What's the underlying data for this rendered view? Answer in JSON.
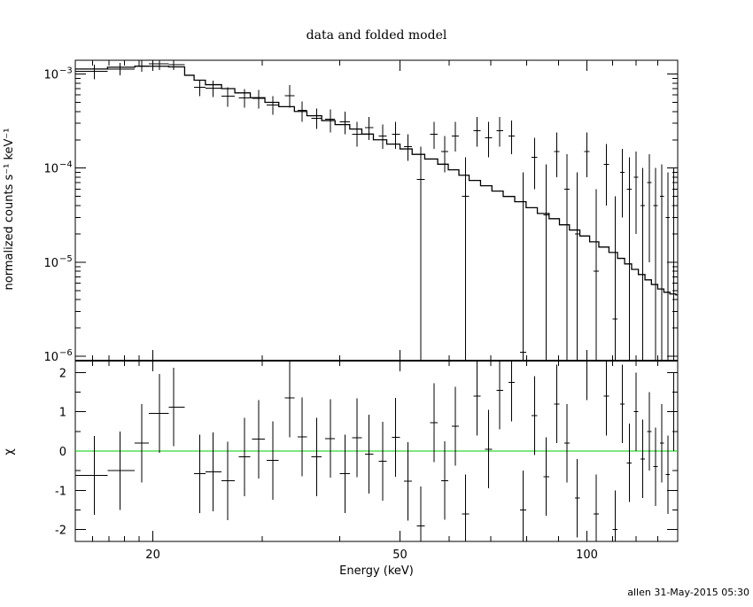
{
  "footer": "allen 31-May-2015 05:30",
  "chart_data": [
    {
      "type": "line",
      "title": "data and folded model",
      "xlabel": "",
      "ylabel": "normalized counts s⁻¹ keV⁻¹",
      "xscale": "log",
      "yscale": "log",
      "xlim": [
        15,
        140
      ],
      "ylim": [
        9e-07,
        0.0014
      ],
      "y_ticks": [
        {
          "v": 0.001,
          "base": "10",
          "exp": "−3"
        },
        {
          "v": 0.0001,
          "base": "10",
          "exp": "−4"
        },
        {
          "v": 1e-05,
          "base": "10",
          "exp": "−5"
        },
        {
          "v": 1e-06,
          "base": "10",
          "exp": "−6"
        }
      ],
      "grid": false,
      "series": [
        {
          "kind": "errorbars",
          "color": "#000000",
          "points": [
            {
              "x": 16.1,
              "xlo": 15.0,
              "xhi": 16.9,
              "y": 0.00107,
              "ylo": 0.00088,
              "yhi": 0.00126
            },
            {
              "x": 17.7,
              "xlo": 16.9,
              "xhi": 18.7,
              "y": 0.00113,
              "ylo": 0.00097,
              "yhi": 0.00131
            },
            {
              "x": 19.2,
              "xlo": 18.7,
              "xhi": 19.7,
              "y": 0.00122,
              "ylo": 0.00106,
              "yhi": 0.0014
            },
            {
              "x": 20.5,
              "xlo": 19.7,
              "xhi": 21.2,
              "y": 0.00128,
              "ylo": 0.0011,
              "yhi": 0.0014
            },
            {
              "x": 21.6,
              "xlo": 21.2,
              "xhi": 22.5,
              "y": 0.00125,
              "ylo": 0.0011,
              "yhi": 0.0014
            },
            {
              "x": 23.8,
              "xlo": 23.3,
              "xhi": 24.3,
              "y": 0.00072,
              "ylo": 0.00058,
              "yhi": 0.00087
            },
            {
              "x": 25.0,
              "xlo": 24.3,
              "xhi": 25.8,
              "y": 0.00071,
              "ylo": 0.00057,
              "yhi": 0.00085
            },
            {
              "x": 26.4,
              "xlo": 25.8,
              "xhi": 27.1,
              "y": 0.00058,
              "ylo": 0.00045,
              "yhi": 0.00072
            },
            {
              "x": 28.1,
              "xlo": 27.5,
              "xhi": 28.7,
              "y": 0.00056,
              "ylo": 0.00044,
              "yhi": 0.00069
            },
            {
              "x": 29.6,
              "xlo": 28.9,
              "xhi": 30.3,
              "y": 0.00055,
              "ylo": 0.00043,
              "yhi": 0.00068
            },
            {
              "x": 31.2,
              "xlo": 30.5,
              "xhi": 31.9,
              "y": 0.00047,
              "ylo": 0.00037,
              "yhi": 0.00058
            },
            {
              "x": 33.2,
              "xlo": 32.6,
              "xhi": 33.8,
              "y": 0.00059,
              "ylo": 0.00044,
              "yhi": 0.00076
            },
            {
              "x": 34.8,
              "xlo": 34.2,
              "xhi": 35.4,
              "y": 0.00041,
              "ylo": 0.00031,
              "yhi": 0.00051
            },
            {
              "x": 36.7,
              "xlo": 36.0,
              "xhi": 37.4,
              "y": 0.00034,
              "ylo": 0.00026,
              "yhi": 0.00043
            },
            {
              "x": 38.6,
              "xlo": 37.9,
              "xhi": 39.3,
              "y": 0.00033,
              "ylo": 0.00024,
              "yhi": 0.00042
            },
            {
              "x": 40.8,
              "xlo": 40.0,
              "xhi": 41.5,
              "y": 0.00031,
              "ylo": 0.00023,
              "yhi": 0.0004
            },
            {
              "x": 42.6,
              "xlo": 41.9,
              "xhi": 43.4,
              "y": 0.00023,
              "ylo": 0.00017,
              "yhi": 0.00031
            },
            {
              "x": 44.6,
              "xlo": 43.9,
              "xhi": 45.3,
              "y": 0.00027,
              "ylo": 0.0002,
              "yhi": 0.00035
            },
            {
              "x": 46.9,
              "xlo": 46.2,
              "xhi": 47.6,
              "y": 0.00022,
              "ylo": 0.00016,
              "yhi": 0.00029
            },
            {
              "x": 49.2,
              "xlo": 48.5,
              "xhi": 50.0,
              "y": 0.00023,
              "ylo": 0.00016,
              "yhi": 0.00031
            },
            {
              "x": 51.5,
              "xlo": 50.7,
              "xhi": 52.3,
              "y": 0.00017,
              "ylo": 0.00012,
              "yhi": 0.00023
            },
            {
              "x": 54.0,
              "xlo": 53.2,
              "xhi": 54.8,
              "y": 7.6e-05,
              "ylo": 9e-07,
              "yhi": 0.00017
            },
            {
              "x": 56.7,
              "xlo": 55.9,
              "xhi": 57.5,
              "y": 0.00023,
              "ylo": 0.00016,
              "yhi": 0.00031
            },
            {
              "x": 59.0,
              "xlo": 58.2,
              "xhi": 59.8,
              "y": 0.00015,
              "ylo": 9e-05,
              "yhi": 0.00022
            },
            {
              "x": 61.4,
              "xlo": 60.6,
              "xhi": 62.2,
              "y": 0.00022,
              "ylo": 0.00015,
              "yhi": 0.00031
            },
            {
              "x": 63.7,
              "xlo": 62.9,
              "xhi": 64.6,
              "y": 5e-05,
              "ylo": 9e-07,
              "yhi": 0.00013
            },
            {
              "x": 66.5,
              "xlo": 65.7,
              "xhi": 67.4,
              "y": 0.00025,
              "ylo": 0.00017,
              "yhi": 0.00035
            },
            {
              "x": 69.4,
              "xlo": 68.5,
              "xhi": 70.3,
              "y": 0.00021,
              "ylo": 0.00013,
              "yhi": 0.00031
            },
            {
              "x": 72.4,
              "xlo": 71.5,
              "xhi": 73.3,
              "y": 0.00025,
              "ylo": 0.00017,
              "yhi": 0.00035
            },
            {
              "x": 75.6,
              "xlo": 74.7,
              "xhi": 76.5,
              "y": 0.00022,
              "ylo": 0.00014,
              "yhi": 0.00032
            },
            {
              "x": 78.9,
              "xlo": 78.0,
              "xhi": 79.8,
              "y": 1.1e-06,
              "ylo": 9e-07,
              "yhi": 9e-05
            },
            {
              "x": 82.3,
              "xlo": 81.4,
              "xhi": 83.2,
              "y": 0.00013,
              "ylo": 6e-05,
              "yhi": 0.00021
            },
            {
              "x": 86.0,
              "xlo": 85.1,
              "xhi": 86.9,
              "y": 3.2e-05,
              "ylo": 9e-07,
              "yhi": 0.00011
            },
            {
              "x": 89.4,
              "xlo": 88.5,
              "xhi": 90.3,
              "y": 0.00015,
              "ylo": 8e-05,
              "yhi": 0.00024
            },
            {
              "x": 92.8,
              "xlo": 91.9,
              "xhi": 93.7,
              "y": 6e-05,
              "ylo": 9e-07,
              "yhi": 0.00014
            },
            {
              "x": 96.5,
              "xlo": 95.6,
              "xhi": 97.4,
              "y": 2e-05,
              "ylo": 9e-07,
              "yhi": 9e-05
            },
            {
              "x": 100.0,
              "xlo": 99.0,
              "xhi": 101.0,
              "y": 0.00015,
              "ylo": 8e-05,
              "yhi": 0.00024
            },
            {
              "x": 103.5,
              "xlo": 102.5,
              "xhi": 104.5,
              "y": 8e-06,
              "ylo": 9e-07,
              "yhi": 6e-05
            },
            {
              "x": 107.5,
              "xlo": 106.5,
              "xhi": 108.5,
              "y": 0.00011,
              "ylo": 4e-05,
              "yhi": 0.00018
            },
            {
              "x": 111.0,
              "xlo": 110.0,
              "xhi": 112.0,
              "y": 2.5e-06,
              "ylo": 9e-07,
              "yhi": 5e-05
            },
            {
              "x": 114.0,
              "xlo": 113.0,
              "xhi": 115.0,
              "y": 9e-05,
              "ylo": 3e-05,
              "yhi": 0.00016
            },
            {
              "x": 117.0,
              "xlo": 116.0,
              "xhi": 118.0,
              "y": 6e-05,
              "ylo": 9e-07,
              "yhi": 0.00013
            },
            {
              "x": 120.0,
              "xlo": 119.0,
              "xhi": 121.0,
              "y": 8e-05,
              "ylo": 2e-05,
              "yhi": 0.00015
            },
            {
              "x": 123.0,
              "xlo": 122.0,
              "xhi": 124.0,
              "y": 4e-05,
              "ylo": 9e-07,
              "yhi": 0.0001
            },
            {
              "x": 126.0,
              "xlo": 125.0,
              "xhi": 127.0,
              "y": 7e-05,
              "ylo": 1e-05,
              "yhi": 0.00014
            },
            {
              "x": 129.0,
              "xlo": 128.0,
              "xhi": 130.0,
              "y": 4e-05,
              "ylo": 9e-07,
              "yhi": 0.0001
            },
            {
              "x": 132.0,
              "xlo": 131.0,
              "xhi": 133.0,
              "y": 5e-05,
              "ylo": 9e-07,
              "yhi": 0.00011
            },
            {
              "x": 135.0,
              "xlo": 134.0,
              "xhi": 136.0,
              "y": 3e-05,
              "ylo": 9e-07,
              "yhi": 9e-05
            },
            {
              "x": 138.0,
              "xlo": 137.0,
              "xhi": 139.0,
              "y": 4e-05,
              "ylo": 9e-07,
              "yhi": 0.0001
            }
          ]
        },
        {
          "kind": "step",
          "color": "#000000",
          "edges": [
            15,
            16.9,
            18.7,
            19.7,
            21.2,
            22.5,
            23.3,
            24.3,
            25.8,
            27.1,
            28.7,
            30.3,
            31.9,
            33.8,
            35.4,
            37.4,
            39.3,
            41.5,
            43.4,
            45.3,
            47.6,
            50.0,
            52.3,
            54.8,
            57.5,
            59.8,
            62.2,
            64.6,
            67.4,
            70.3,
            73.3,
            76.5,
            79.8,
            83.2,
            86.9,
            90.3,
            93.7,
            97.4,
            101.0,
            104.5,
            108.5,
            112.0,
            115.0,
            118.0,
            121.0,
            124.0,
            127.0,
            130.0,
            133.0,
            136.0,
            139.0,
            140.0
          ],
          "values": [
            0.00113,
            0.00118,
            0.00121,
            0.00121,
            0.00119,
            0.00097,
            0.00086,
            0.00077,
            0.0007,
            0.00063,
            0.00056,
            0.0005,
            0.00045,
            0.0004,
            0.00036,
            0.00032,
            0.00029,
            0.00026,
            0.00023,
            0.0002,
            0.00018,
            0.00016,
            0.00014,
            0.000125,
            0.00011,
            9.6e-05,
            8.4e-05,
            7.4e-05,
            6.5e-05,
            5.7e-05,
            5e-05,
            4.4e-05,
            3.8e-05,
            3.3e-05,
            2.9e-05,
            2.5e-05,
            2.2e-05,
            1.9e-05,
            1.65e-05,
            1.45e-05,
            1.27e-05,
            1.1e-05,
            9.6e-06,
            8.4e-06,
            7.4e-06,
            6.5e-06,
            5.8e-06,
            5.2e-06,
            4.8e-06,
            4.6e-06,
            4.5e-06
          ]
        }
      ]
    },
    {
      "type": "scatter",
      "title": "",
      "xlabel": "Energy (keV)",
      "ylabel": "χ",
      "xscale": "log",
      "xlim": [
        15,
        140
      ],
      "ylim": [
        -2.3,
        2.3
      ],
      "y_ticks": [
        -2,
        -1,
        0,
        1,
        2
      ],
      "x_ticks": [
        20,
        50,
        100
      ],
      "grid": false,
      "zero_line_color": "#00cc00",
      "points": [
        {
          "x": 16.1,
          "xlo": 15.0,
          "xhi": 16.9,
          "y": -0.62
        },
        {
          "x": 17.7,
          "xlo": 16.9,
          "xhi": 18.7,
          "y": -0.5
        },
        {
          "x": 19.2,
          "xlo": 18.7,
          "xhi": 19.7,
          "y": 0.2
        },
        {
          "x": 20.5,
          "xlo": 19.7,
          "xhi": 21.2,
          "y": 0.96
        },
        {
          "x": 21.6,
          "xlo": 21.2,
          "xhi": 22.5,
          "y": 1.12
        },
        {
          "x": 23.8,
          "xlo": 23.3,
          "xhi": 24.3,
          "y": -0.58
        },
        {
          "x": 25.0,
          "xlo": 24.3,
          "xhi": 25.8,
          "y": -0.53
        },
        {
          "x": 26.4,
          "xlo": 25.8,
          "xhi": 27.1,
          "y": -0.76
        },
        {
          "x": 28.1,
          "xlo": 27.5,
          "xhi": 28.7,
          "y": -0.15
        },
        {
          "x": 29.6,
          "xlo": 28.9,
          "xhi": 30.3,
          "y": 0.3
        },
        {
          "x": 31.2,
          "xlo": 30.5,
          "xhi": 31.9,
          "y": -0.24
        },
        {
          "x": 33.2,
          "xlo": 32.6,
          "xhi": 33.8,
          "y": 1.35
        },
        {
          "x": 34.8,
          "xlo": 34.2,
          "xhi": 35.4,
          "y": 0.36
        },
        {
          "x": 36.7,
          "xlo": 36.0,
          "xhi": 37.4,
          "y": -0.15
        },
        {
          "x": 38.6,
          "xlo": 37.9,
          "xhi": 39.3,
          "y": 0.32
        },
        {
          "x": 40.8,
          "xlo": 40.0,
          "xhi": 41.5,
          "y": -0.58
        },
        {
          "x": 42.6,
          "xlo": 41.9,
          "xhi": 43.4,
          "y": 0.34
        },
        {
          "x": 44.6,
          "xlo": 43.9,
          "xhi": 45.3,
          "y": -0.08
        },
        {
          "x": 46.9,
          "xlo": 46.2,
          "xhi": 47.6,
          "y": -0.26
        },
        {
          "x": 49.2,
          "xlo": 48.5,
          "xhi": 50.0,
          "y": 0.35
        },
        {
          "x": 51.5,
          "xlo": 50.7,
          "xhi": 52.3,
          "y": -0.77
        },
        {
          "x": 54.0,
          "xlo": 53.2,
          "xhi": 54.8,
          "y": -1.9
        },
        {
          "x": 56.7,
          "xlo": 55.9,
          "xhi": 57.5,
          "y": 0.72
        },
        {
          "x": 59.0,
          "xlo": 58.2,
          "xhi": 59.8,
          "y": -0.75
        },
        {
          "x": 61.4,
          "xlo": 60.6,
          "xhi": 62.2,
          "y": 0.63
        },
        {
          "x": 63.7,
          "xlo": 62.9,
          "xhi": 64.6,
          "y": -1.6
        },
        {
          "x": 66.5,
          "xlo": 65.7,
          "xhi": 67.4,
          "y": 1.4
        },
        {
          "x": 69.4,
          "xlo": 68.5,
          "xhi": 70.3,
          "y": 0.05
        },
        {
          "x": 72.4,
          "xlo": 71.5,
          "xhi": 73.3,
          "y": 1.55
        },
        {
          "x": 75.6,
          "xlo": 74.7,
          "xhi": 76.5,
          "y": 1.75
        },
        {
          "x": 78.9,
          "xlo": 78.0,
          "xhi": 79.8,
          "y": -1.5
        },
        {
          "x": 82.3,
          "xlo": 81.4,
          "xhi": 83.2,
          "y": 0.9
        },
        {
          "x": 86.0,
          "xlo": 85.1,
          "xhi": 86.9,
          "y": -0.65
        },
        {
          "x": 89.4,
          "xlo": 88.5,
          "xhi": 90.3,
          "y": 1.2
        },
        {
          "x": 92.8,
          "xlo": 91.9,
          "xhi": 93.7,
          "y": 0.2
        },
        {
          "x": 96.5,
          "xlo": 95.6,
          "xhi": 97.4,
          "y": -1.2
        },
        {
          "x": 100.0,
          "xlo": 99.0,
          "xhi": 101.0,
          "y": 2.3
        },
        {
          "x": 103.5,
          "xlo": 102.5,
          "xhi": 104.5,
          "y": -1.6
        },
        {
          "x": 107.5,
          "xlo": 106.5,
          "xhi": 108.5,
          "y": 1.4
        },
        {
          "x": 111.0,
          "xlo": 110.0,
          "xhi": 112.0,
          "y": -2.0
        },
        {
          "x": 114.0,
          "xlo": 113.0,
          "xhi": 115.0,
          "y": 1.2
        },
        {
          "x": 117.0,
          "xlo": 116.0,
          "xhi": 118.0,
          "y": -0.3
        },
        {
          "x": 120.0,
          "xlo": 119.0,
          "xhi": 121.0,
          "y": 1.0
        },
        {
          "x": 123.0,
          "xlo": 122.0,
          "xhi": 124.0,
          "y": -0.2
        },
        {
          "x": 126.0,
          "xlo": 125.0,
          "xhi": 127.0,
          "y": 0.5
        },
        {
          "x": 129.0,
          "xlo": 128.0,
          "xhi": 130.0,
          "y": -0.4
        },
        {
          "x": 132.0,
          "xlo": 131.0,
          "xhi": 133.0,
          "y": 0.2
        },
        {
          "x": 135.0,
          "xlo": 134.0,
          "xhi": 136.0,
          "y": -0.6
        },
        {
          "x": 138.0,
          "xlo": 137.0,
          "xhi": 139.0,
          "y": 1.0
        }
      ]
    }
  ]
}
